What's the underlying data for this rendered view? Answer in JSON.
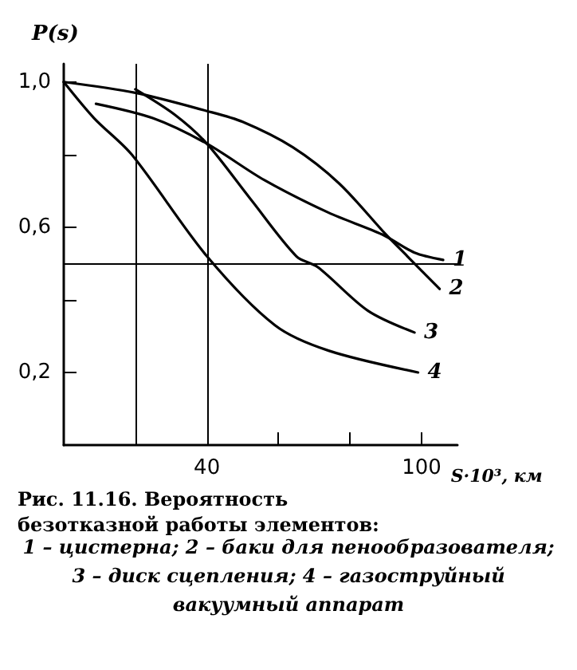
{
  "chart_data": {
    "type": "line",
    "title": "Рис. 11.16. Вероятность безотказной работы элементов:",
    "xlabel": "S·10³, км",
    "ylabel": "P(s)",
    "annotations": [
      "1 – цистерна; 2 – баки для пенообразователя;",
      "3 – диск сцепления; 4 – газоструйный",
      "вакуумный аппарат"
    ],
    "xlim": [
      0,
      110
    ],
    "xticks": [
      {
        "value": 20,
        "label": null
      },
      40,
      {
        "value": 60,
        "label": null
      },
      {
        "value": 80,
        "label": null
      },
      100
    ],
    "ylim": [
      0,
      1.05
    ],
    "yticks": [
      {
        "value": 0.2,
        "label": "0,2"
      },
      {
        "value": 0.4,
        "label": null
      },
      {
        "value": 0.6,
        "label": "0,6"
      },
      {
        "value": 0.8,
        "label": null
      },
      {
        "value": 1.0,
        "label": "1,0"
      }
    ],
    "grid": false,
    "legend": false,
    "marker": "none",
    "line_style": "solid",
    "ref_lines": [
      {
        "axis": "x",
        "value": 20,
        "color": "#000000"
      },
      {
        "axis": "x",
        "value": 40,
        "color": "#000000"
      },
      {
        "axis": "y",
        "value": 0.5,
        "color": "#000000"
      }
    ],
    "series": [
      {
        "name": "1",
        "color": "#000000",
        "x": [
          9,
          25,
          40,
          56,
          74,
          89,
          98,
          106
        ],
        "values": [
          0.94,
          0.9,
          0.83,
          0.73,
          0.64,
          0.58,
          0.53,
          0.51
        ]
      },
      {
        "name": "2",
        "color": "#000000",
        "x": [
          0,
          20,
          40,
          50,
          64,
          77,
          90,
          96,
          105
        ],
        "values": [
          1.0,
          0.97,
          0.92,
          0.89,
          0.82,
          0.72,
          0.58,
          0.52,
          0.43
        ]
      },
      {
        "name": "3",
        "color": "#000000",
        "x": [
          20,
          31,
          40,
          52,
          65,
          71,
          85,
          98
        ],
        "values": [
          0.98,
          0.91,
          0.83,
          0.68,
          0.52,
          0.49,
          0.37,
          0.31
        ]
      },
      {
        "name": "4",
        "color": "#000000",
        "x": [
          0,
          8.5,
          19,
          40,
          59,
          74,
          99
        ],
        "values": [
          1.0,
          0.9,
          0.8,
          0.52,
          0.33,
          0.26,
          0.2
        ]
      }
    ]
  }
}
